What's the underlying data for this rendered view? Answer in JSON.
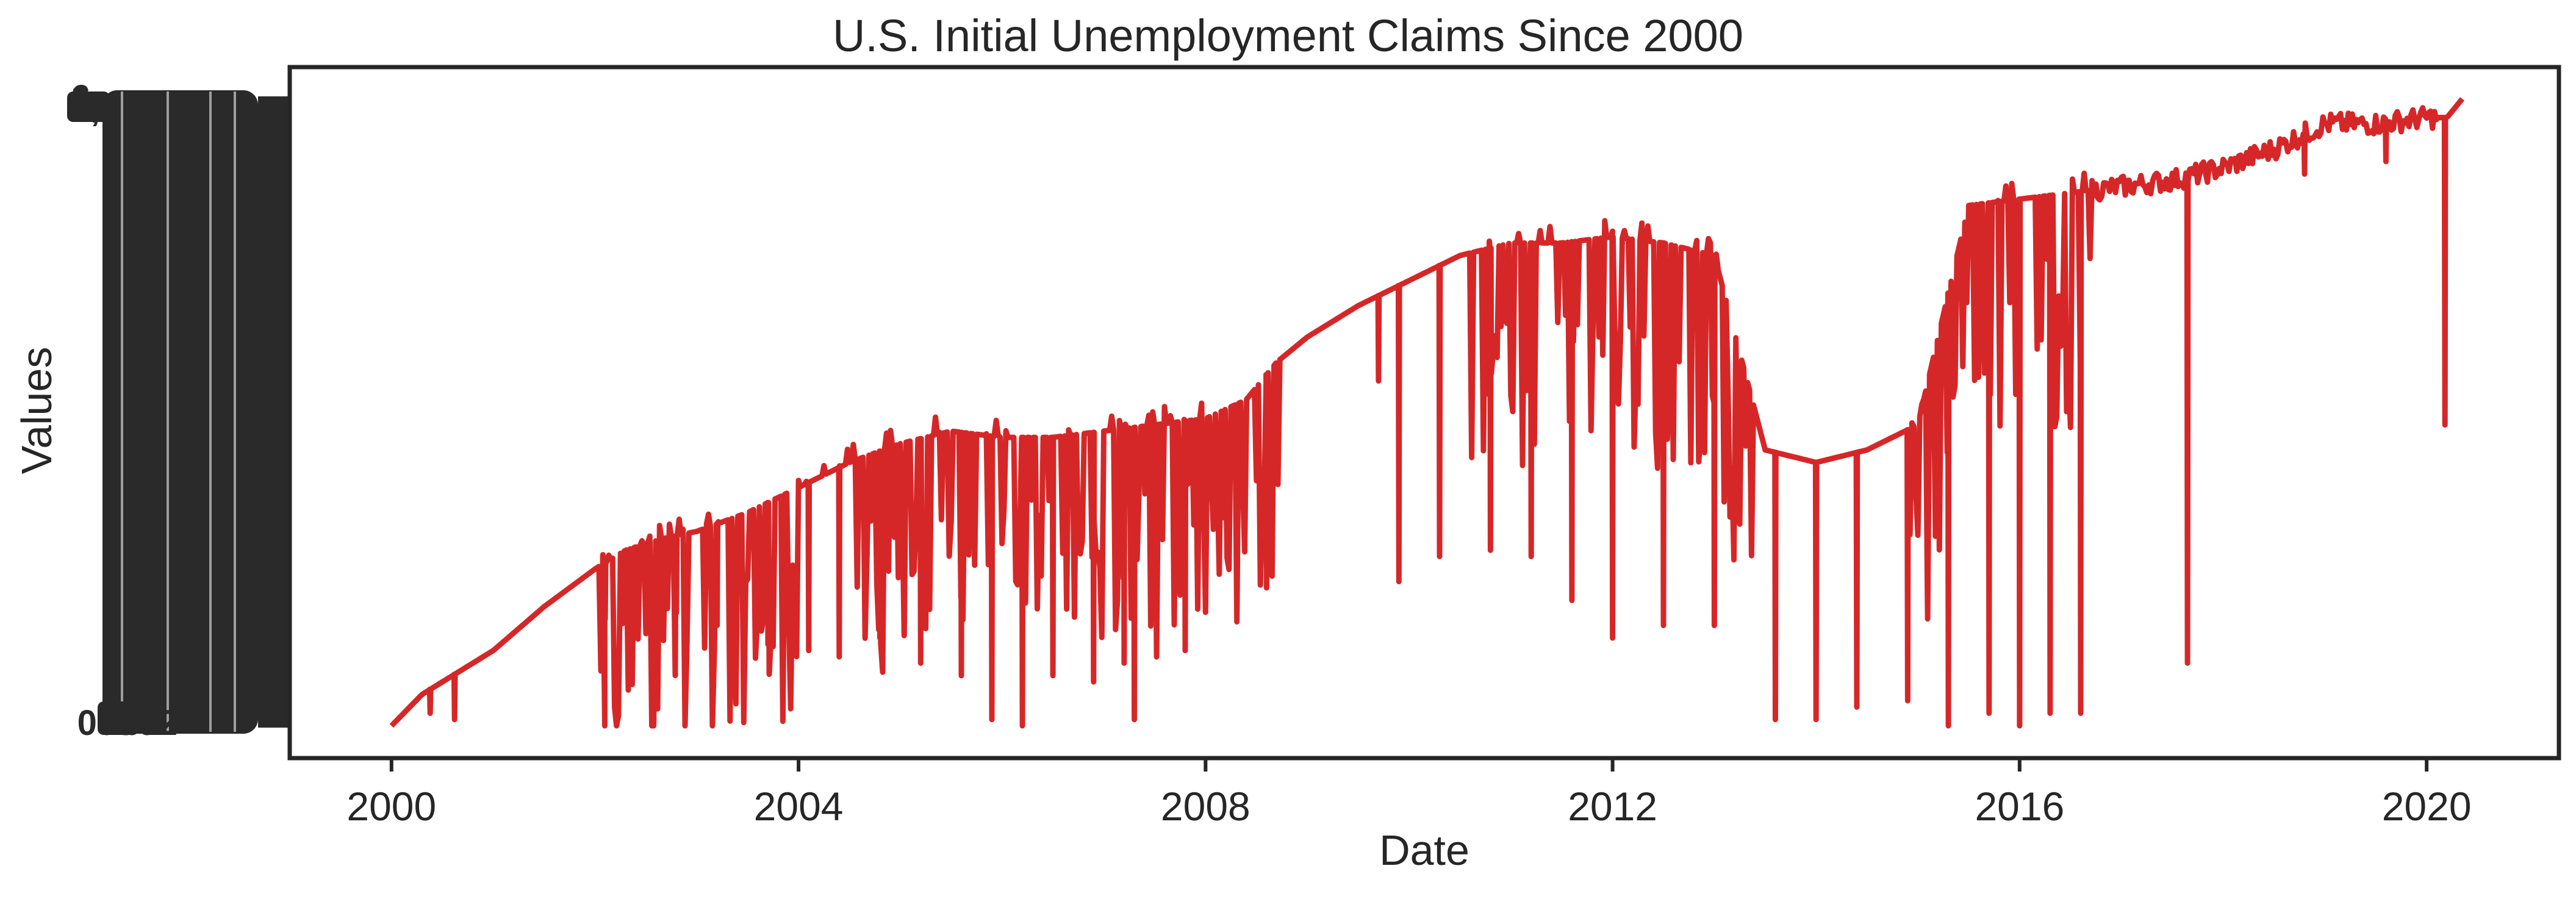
{
  "chart_data": {
    "type": "line",
    "title": "U.S. Initial Unemployment Claims Since 2000",
    "xlabel": "Date",
    "ylabel": "Values",
    "x_ticks": [
      "2000",
      "2004",
      "2008",
      "2012",
      "2016",
      "2020"
    ],
    "x_range": [
      1999.0,
      2021.3
    ],
    "y_axis_note": "categorical y-axis; hundreds of overlapping, illegible tick labels",
    "y_visible_label_fragments": [
      "6,",
      "5,",
      "4,",
      "3,",
      "000",
      "20",
      "70",
      "1",
      "2"
    ],
    "grid": false,
    "legend": "none",
    "series": [
      {
        "color": "#d62728",
        "x": [
          2000.0,
          2000.3,
          2000.6,
          2001.0,
          2001.5,
          2002.0,
          2002.3,
          2002.7,
          2003.0,
          2003.5,
          2004.0,
          2004.5,
          2005.0,
          2005.5,
          2006.0,
          2006.5,
          2007.0,
          2007.5,
          2008.0,
          2008.4,
          2008.7,
          2009.0,
          2009.5,
          2010.0,
          2010.5,
          2011.0,
          2011.5,
          2012.0,
          2012.5,
          2013.0,
          2013.5,
          2014.0,
          2014.5,
          2015.0,
          2015.5,
          2016.0,
          2016.5,
          2017.0,
          2017.5,
          2018.0,
          2018.5,
          2019.0,
          2019.5,
          2020.0,
          2020.2,
          2020.35
        ],
        "y_fraction": [
          0.0,
          0.05,
          0.08,
          0.12,
          0.19,
          0.25,
          0.28,
          0.3,
          0.31,
          0.34,
          0.38,
          0.42,
          0.45,
          0.47,
          0.46,
          0.46,
          0.47,
          0.48,
          0.49,
          0.52,
          0.58,
          0.62,
          0.67,
          0.71,
          0.75,
          0.77,
          0.77,
          0.78,
          0.77,
          0.75,
          0.44,
          0.42,
          0.44,
          0.48,
          0.83,
          0.84,
          0.85,
          0.86,
          0.87,
          0.89,
          0.92,
          0.96,
          0.96,
          0.97,
          0.97,
          1.0
        ],
        "spikes": [
          {
            "x": 2000.38,
            "y_fraction": 0.02
          },
          {
            "x": 2000.62,
            "y_fraction": 0.01
          },
          {
            "x": 2002.1,
            "y_fraction": 0.17
          },
          {
            "x": 2002.4,
            "y_fraction": 0.15
          },
          {
            "x": 2002.8,
            "y_fraction": 0.18
          },
          {
            "x": 2003.2,
            "y_fraction": 0.16
          },
          {
            "x": 2003.7,
            "y_fraction": 0.13
          },
          {
            "x": 2004.1,
            "y_fraction": 0.12
          },
          {
            "x": 2004.4,
            "y_fraction": 0.11
          },
          {
            "x": 2004.8,
            "y_fraction": 0.14
          },
          {
            "x": 2005.2,
            "y_fraction": 0.1
          },
          {
            "x": 2005.6,
            "y_fraction": 0.08
          },
          {
            "x": 2005.9,
            "y_fraction": 0.01
          },
          {
            "x": 2006.2,
            "y_fraction": 0.0
          },
          {
            "x": 2006.5,
            "y_fraction": 0.08
          },
          {
            "x": 2006.9,
            "y_fraction": 0.07
          },
          {
            "x": 2007.2,
            "y_fraction": 0.1
          },
          {
            "x": 2007.3,
            "y_fraction": 0.01
          },
          {
            "x": 2007.8,
            "y_fraction": 0.12
          },
          {
            "x": 2008.6,
            "y_fraction": 0.22
          },
          {
            "x": 2009.7,
            "y_fraction": 0.55
          },
          {
            "x": 2009.9,
            "y_fraction": 0.23
          },
          {
            "x": 2010.3,
            "y_fraction": 0.27
          },
          {
            "x": 2010.8,
            "y_fraction": 0.28
          },
          {
            "x": 2011.2,
            "y_fraction": 0.27
          },
          {
            "x": 2011.6,
            "y_fraction": 0.2
          },
          {
            "x": 2012.0,
            "y_fraction": 0.14
          },
          {
            "x": 2012.5,
            "y_fraction": 0.16
          },
          {
            "x": 2013.0,
            "y_fraction": 0.16
          },
          {
            "x": 2013.6,
            "y_fraction": 0.01
          },
          {
            "x": 2014.0,
            "y_fraction": 0.01
          },
          {
            "x": 2014.4,
            "y_fraction": 0.03
          },
          {
            "x": 2014.9,
            "y_fraction": 0.04
          },
          {
            "x": 2015.3,
            "y_fraction": 0.0
          },
          {
            "x": 2015.7,
            "y_fraction": 0.02
          },
          {
            "x": 2016.0,
            "y_fraction": 0.0
          },
          {
            "x": 2016.3,
            "y_fraction": 0.02
          },
          {
            "x": 2016.6,
            "y_fraction": 0.02
          },
          {
            "x": 2017.65,
            "y_fraction": 0.1
          },
          {
            "x": 2018.8,
            "y_fraction": 0.88
          },
          {
            "x": 2019.6,
            "y_fraction": 0.9
          },
          {
            "x": 2020.18,
            "y_fraction": 0.48
          }
        ]
      }
    ]
  }
}
